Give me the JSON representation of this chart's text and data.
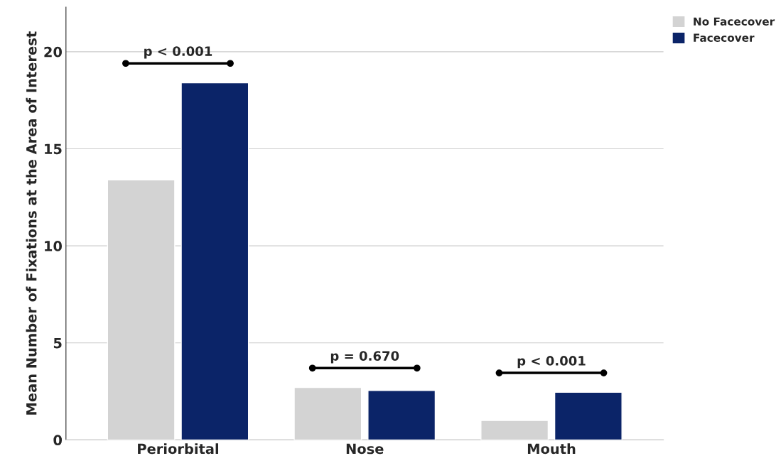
{
  "chart_data": {
    "type": "bar",
    "ylabel": "Mean Number of Fixations at the Area of Interest",
    "categories": [
      "Periorbital",
      "Nose",
      "Mouth"
    ],
    "series": [
      {
        "name": "No Facecover",
        "color": "#d3d3d3",
        "values": [
          13.4,
          2.7,
          1.0
        ]
      },
      {
        "name": "Facecover",
        "color": "#0b2468",
        "values": [
          18.4,
          2.55,
          2.45
        ]
      }
    ],
    "ylim": [
      0,
      22.3
    ],
    "yticks": [
      0,
      5,
      10,
      15,
      20
    ],
    "grid": "y",
    "legend": "top right",
    "annotations": [
      "p < 0.001",
      "p = 0.670",
      "p < 0.001"
    ]
  }
}
